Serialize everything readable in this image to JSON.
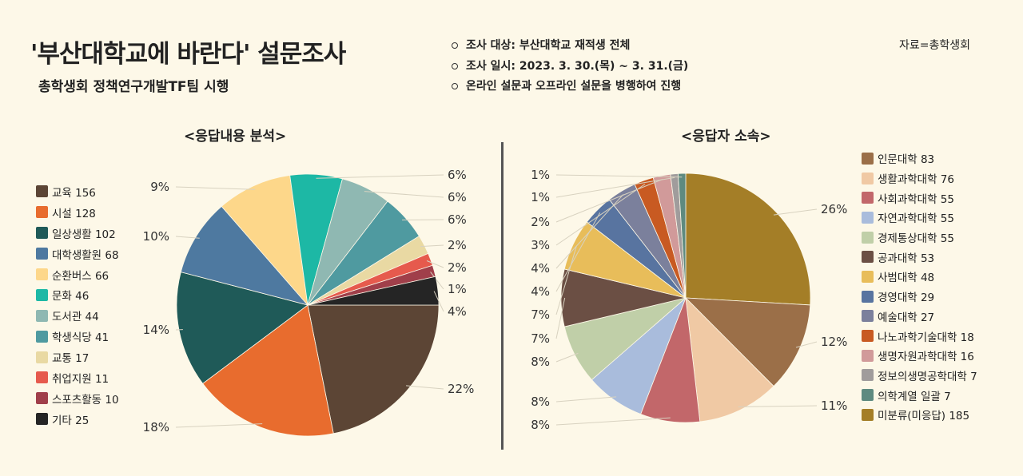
{
  "header": {
    "title": "'부산대학교에 바란다' 설문조사",
    "subtitle": "총학생회 정책연구개발TF팀  시행",
    "info": [
      "조사 대상: 부산대학교 재적생 전체",
      "조사 일시: 2023. 3. 30.(목) ~ 3. 31.(금)",
      "온라인 설문과 오프라인 설문을 병행하여 진행"
    ],
    "source": "자료=총학생회"
  },
  "chart_data": [
    {
      "type": "pie",
      "title": "<응답내용 분석>",
      "start_angle_deg": 90,
      "direction": "clockwise",
      "legend_position": "left",
      "categories": [
        "교육",
        "시설",
        "일상생활",
        "대학생활원",
        "순환버스",
        "문화",
        "도서관",
        "학생식당",
        "교통",
        "취업지원",
        "스포츠활동",
        "기타"
      ],
      "values": [
        156,
        128,
        102,
        68,
        66,
        46,
        44,
        41,
        17,
        11,
        10,
        25
      ],
      "labels": [
        "22%",
        "18%",
        "14%",
        "10%",
        "9%",
        "6%",
        "6%",
        "6%",
        "2%",
        "2%",
        "1%",
        "4%"
      ],
      "colors": [
        "#5c4535",
        "#e86c2e",
        "#1f5a58",
        "#4e79a0",
        "#fdd78a",
        "#1db8a5",
        "#8fb8b2",
        "#4f9aa0",
        "#e9d9a3",
        "#e65a4d",
        "#a03f4a",
        "#252525"
      ]
    },
    {
      "type": "pie",
      "title": "<응답자 소속>",
      "start_angle_deg": 0,
      "direction": "clockwise",
      "legend_position": "right",
      "categories": [
        "미분류(미응답)",
        "인문대학",
        "생활과학대학",
        "사회과학대학",
        "자연과학대학",
        "경제통상대학",
        "공과대학",
        "사범대학",
        "경영대학",
        "예술대학",
        "나노과학기술대학",
        "생명자원과학대학",
        "정보의생명공학대학",
        "의학계열 일괄"
      ],
      "values": [
        185,
        83,
        76,
        55,
        55,
        55,
        53,
        48,
        29,
        27,
        18,
        16,
        7,
        7
      ],
      "labels": [
        "26%",
        "12%",
        "11%",
        "8%",
        "8%",
        "8%",
        "7%",
        "7%",
        "4%",
        "4%",
        "3%",
        "2%",
        "1%",
        "1%"
      ],
      "colors": [
        "#a47e27",
        "#9b6f48",
        "#f0c9a4",
        "#c2676a",
        "#a9bcdc",
        "#c0cfa8",
        "#6b4f44",
        "#e8bd5a",
        "#5874a0",
        "#7b809c",
        "#c85a22",
        "#d19a9a",
        "#a09c9c",
        "#5e8a80"
      ],
      "legend_order": [
        1,
        2,
        3,
        4,
        5,
        6,
        7,
        8,
        9,
        10,
        11,
        12,
        13,
        0
      ]
    }
  ]
}
